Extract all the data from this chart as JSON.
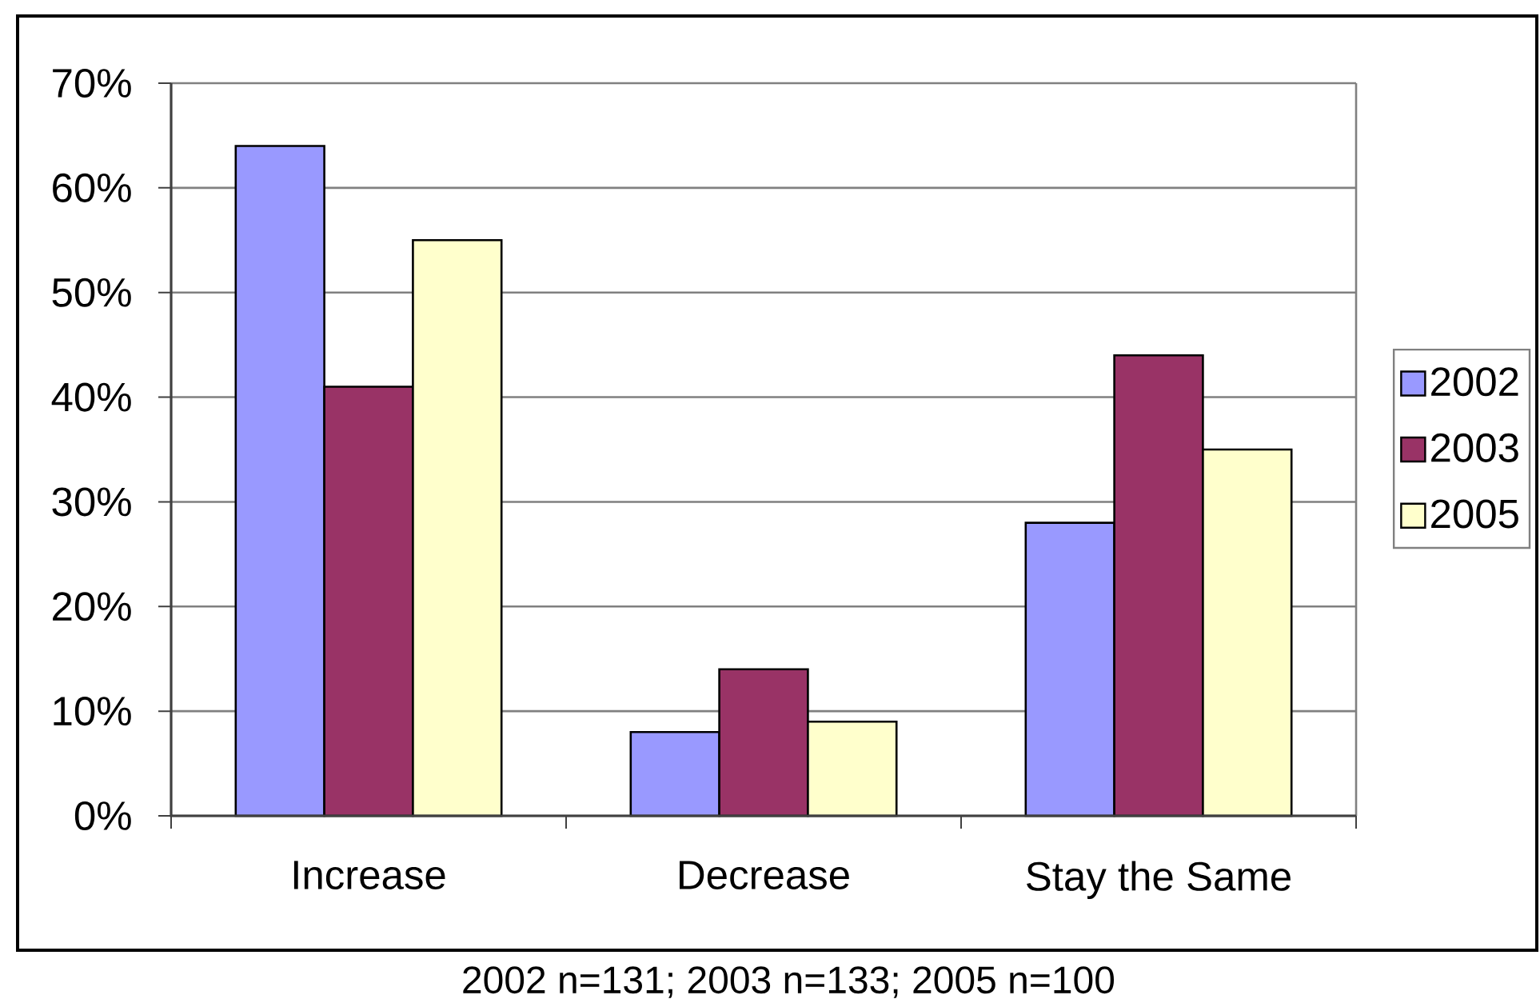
{
  "chart_data": {
    "type": "bar",
    "categories": [
      "Increase",
      "Decrease",
      "Stay the Same"
    ],
    "series": [
      {
        "name": "2002",
        "color": "#9999ff",
        "values": [
          64,
          8,
          28
        ]
      },
      {
        "name": "2003",
        "color": "#993366",
        "values": [
          41,
          14,
          44
        ]
      },
      {
        "name": "2005",
        "color": "#ffffcc",
        "values": [
          55,
          9,
          35
        ]
      }
    ],
    "ylim": [
      0,
      70
    ],
    "yticks": [
      {
        "value": 0,
        "label": "0%"
      },
      {
        "value": 10,
        "label": "10%"
      },
      {
        "value": 20,
        "label": "20%"
      },
      {
        "value": 30,
        "label": "30%"
      },
      {
        "value": 40,
        "label": "40%"
      },
      {
        "value": 50,
        "label": "50%"
      },
      {
        "value": 60,
        "label": "60%"
      },
      {
        "value": 70,
        "label": "70%"
      }
    ],
    "grid": "y",
    "legend": "right",
    "annotations": [
      "2002 n=131; 2003 n=133; 2005 n=100"
    ]
  }
}
